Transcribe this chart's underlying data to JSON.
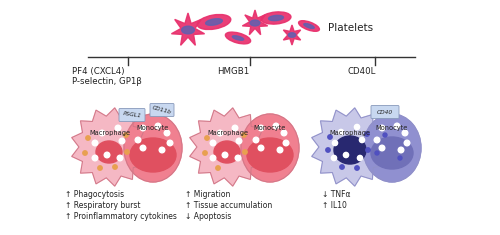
{
  "title": "Platelets",
  "background_color": "#ffffff",
  "section1_label_line1": "PF4 (CXCL4)",
  "section1_label_line2": "P-selectin, GP1β",
  "section2_label": "HMGB1",
  "section3_label": "CD40L",
  "section1_effects": [
    "↑ Phagocytosis",
    "↑ Respiratory burst",
    "↑ Proinflammatory cytokines"
  ],
  "section2_effects": [
    "↑ Migration",
    "↑ Tissue accumulation",
    "↓ Apoptosis"
  ],
  "section3_effects": [
    "↓ TNFα",
    "↑ IL10"
  ],
  "macrophage_color_pink": "#f5b8c4",
  "monocyte_color_pink": "#f08090",
  "macrophage_color_purple": "#c8c8e8",
  "monocyte_color_purple": "#9090d0",
  "nucleus_color_red": "#e05060",
  "nucleus_color_purple": "#282870",
  "nucleus_color_mono3": "#7070b8",
  "dot_white": "#ffffff",
  "dot_orange": "#e8a050",
  "dot_blue": "#5050c0",
  "platelet_pink": "#e8306c",
  "platelet_purple": "#6060b0",
  "receptor_color": "#c8d8f0",
  "line_color": "#333333",
  "text_color": "#222222",
  "spike_line_color": "#cc7080",
  "spike_line_color_purple": "#8888cc"
}
